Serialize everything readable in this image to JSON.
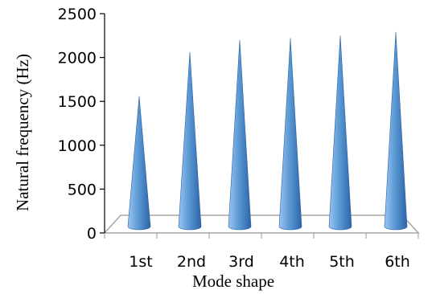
{
  "chart_data": {
    "type": "bar",
    "bar_shape": "cone",
    "categories": [
      "1st",
      "2nd",
      "3rd",
      "4th",
      "5th",
      "6th"
    ],
    "series": [
      {
        "values": [
          1560,
          2060,
          2200,
          2220,
          2250,
          2290
        ]
      }
    ],
    "xlabel": "Mode shape",
    "ylabel": "Natural frequency (Hz)",
    "ylim": [
      0,
      2500
    ],
    "yticks": [
      "0",
      "500",
      "1000",
      "1500",
      "2000",
      "2500"
    ],
    "grid": false,
    "legend": "none",
    "colors": {
      "cone_light": "#9cc3f0",
      "cone_mid": "#5b9bd5",
      "cone_dark": "#2e63a8",
      "floor_fill": "#ffffff",
      "floor_stroke": "#a6a6a6",
      "axis": "#000000"
    }
  }
}
